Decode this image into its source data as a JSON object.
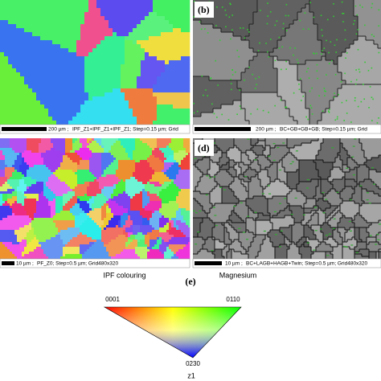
{
  "panel_a": {
    "scale_bar": "200 µm ;",
    "info": "IPF_Z1+IPF_Z1+IPF_Z1; Step=0.15 µm; Grid"
  },
  "panel_b": {
    "label": "(b)",
    "scale_bar": "200 µm ;",
    "info": "BC+GB+GB+GB; Step=0.15 µm; Grid"
  },
  "panel_c": {
    "scale_bar": "10 µm ;",
    "info": "PF_Z0; Step=0.5 µm; Grid480x320"
  },
  "panel_d": {
    "label": "(d)",
    "scale_bar": "10 µm ;",
    "info": "BC+LAGB+HAGB+Twin; Step=0.5 µm; Grid480x320"
  },
  "legend": {
    "caption_left": "IPF colouring",
    "caption_right": "Magnesium",
    "label": "(e)",
    "corners": [
      "0001",
      "0110",
      "0230"
    ],
    "axis": "z1"
  }
}
